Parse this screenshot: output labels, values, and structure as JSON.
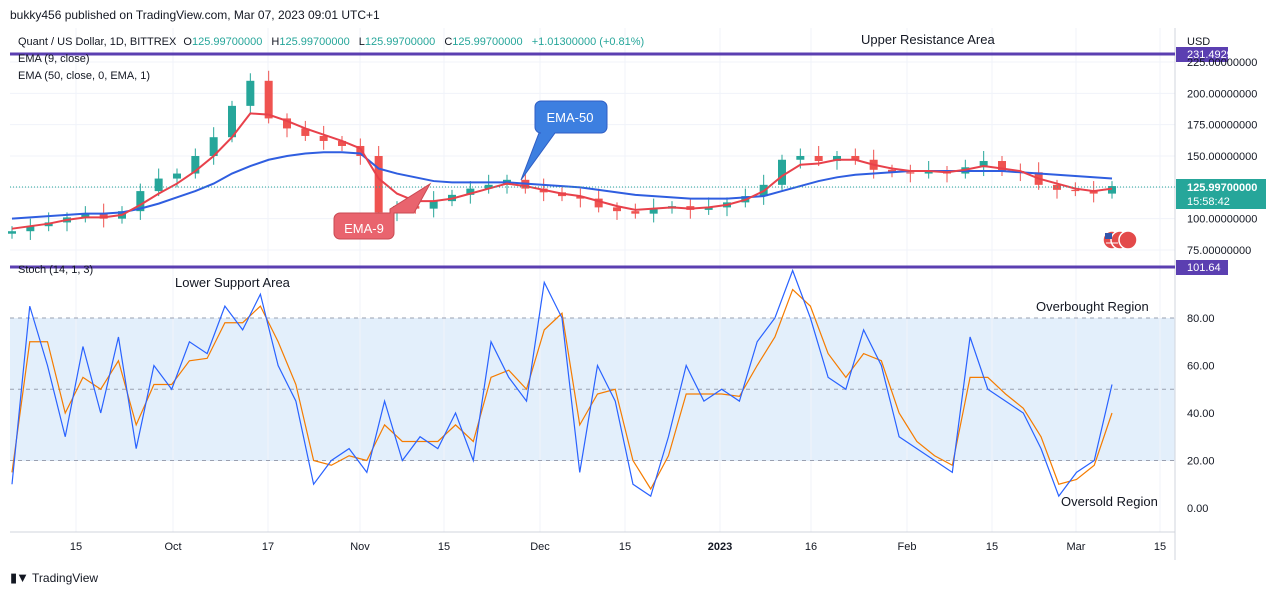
{
  "header": {
    "publisher": "bukky456 published on TradingView.com, Mar 07, 2023 09:01 UTC+1"
  },
  "legend": {
    "symbol": "Quant / US Dollar, 1D, BITTREX",
    "o_label": "O",
    "o_value": "125.99700000",
    "h_label": "H",
    "h_value": "125.99700000",
    "l_label": "L",
    "l_value": "125.99700000",
    "c_label": "C",
    "c_value": "125.99700000",
    "change": "+1.01300000 (+0.81%)",
    "ema9": "EMA (9, close)",
    "ema50": "EMA (50, close, 0, EMA, 1)",
    "stoch": "Stoch (14, 1, 3)"
  },
  "annotations": {
    "upper_resistance": "Upper Resistance Area",
    "lower_support": "Lower Support Area",
    "overbought": "Overbought Region",
    "oversold": "Oversold Region",
    "ema50_callout": "EMA-50",
    "ema9_callout": "EMA-9"
  },
  "price_axis": {
    "currency": "USD",
    "top_line_label": "231.49297645",
    "ticks": [
      "225.00000000",
      "200.00000000",
      "175.00000000",
      "150.00000000",
      "100.00000000",
      "75.00000000"
    ],
    "last_price": "125.99700000",
    "countdown": "15:58:42"
  },
  "stoch_axis": {
    "top_line_label": "101.64",
    "ticks": [
      "80.00",
      "60.00",
      "40.00",
      "20.00",
      "0.00"
    ]
  },
  "time_axis": {
    "ticks": [
      "15",
      "Oct",
      "17",
      "Nov",
      "15",
      "Dec",
      "15",
      "2023",
      "16",
      "Feb",
      "15",
      "Mar",
      "15"
    ]
  },
  "footer": {
    "brand": "TradingView"
  },
  "colors": {
    "up": "#26a69a",
    "down": "#ef5350",
    "ema9": "#e8414b",
    "ema50": "#2f5ee0",
    "resistance_line": "#5b3fb1",
    "stoch_k": "#2962ff",
    "stoch_d": "#f57c00",
    "band_fill": "#e3effb",
    "callout_ema50": "#3d7fe0",
    "callout_ema9": "#e9646e"
  },
  "chart_data": [
    {
      "type": "candlestick",
      "title": "Quant / US Dollar, 1D, BITTREX",
      "ylim": [
        70,
        240
      ],
      "horizontal_lines": [
        {
          "label": "Upper Resistance Area",
          "value": 231.49297645
        }
      ],
      "dates": [
        "Sep 07",
        "Sep 10",
        "Sep 13",
        "Sep 16",
        "Sep 19",
        "Sep 22",
        "Sep 25",
        "Sep 28",
        "Oct 01",
        "Oct 04",
        "Oct 07",
        "Oct 10",
        "Oct 13",
        "Oct 16",
        "Oct 19",
        "Oct 22",
        "Oct 25",
        "Oct 28",
        "Oct 31",
        "Nov 03",
        "Nov 06",
        "Nov 09",
        "Nov 12",
        "Nov 15",
        "Nov 18",
        "Nov 21",
        "Nov 24",
        "Nov 27",
        "Nov 30",
        "Dec 03",
        "Dec 06",
        "Dec 09",
        "Dec 12",
        "Dec 15",
        "Dec 18",
        "Dec 21",
        "Dec 24",
        "Dec 27",
        "Dec 30",
        "Jan 02",
        "Jan 05",
        "Jan 08",
        "Jan 11",
        "Jan 14",
        "Jan 17",
        "Jan 20",
        "Jan 23",
        "Jan 26",
        "Jan 29",
        "Feb 01",
        "Feb 04",
        "Feb 07",
        "Feb 10",
        "Feb 13",
        "Feb 16",
        "Feb 19",
        "Feb 22",
        "Feb 25",
        "Feb 28",
        "Mar 03",
        "Mar 06"
      ],
      "close": [
        90,
        94,
        97,
        101,
        104,
        100,
        106,
        122,
        132,
        136,
        150,
        165,
        190,
        210,
        180,
        172,
        166,
        162,
        158,
        150,
        105,
        110,
        108,
        114,
        119,
        124,
        127,
        131,
        124,
        121,
        118,
        116,
        109,
        106,
        104,
        108,
        110,
        107,
        109,
        113,
        118,
        127,
        147,
        150,
        146,
        150,
        147,
        139,
        137,
        136,
        138,
        136,
        141,
        146,
        138,
        137,
        127,
        123,
        122,
        120,
        126
      ],
      "ema9": [
        92,
        94,
        96,
        99,
        101,
        101,
        103,
        111,
        120,
        128,
        138,
        150,
        165,
        184,
        183,
        178,
        172,
        167,
        162,
        156,
        132,
        120,
        114,
        114,
        116,
        120,
        124,
        128,
        126,
        123,
        120,
        118,
        114,
        110,
        107,
        108,
        109,
        108,
        109,
        111,
        115,
        122,
        134,
        143,
        144,
        147,
        147,
        143,
        140,
        138,
        138,
        137,
        139,
        142,
        140,
        138,
        132,
        128,
        124,
        122,
        124
      ],
      "ema50": [
        100,
        101,
        102,
        103,
        104,
        104,
        105,
        108,
        112,
        117,
        122,
        128,
        136,
        142,
        147,
        150,
        152,
        153,
        153,
        152,
        140,
        136,
        133,
        130,
        129,
        129,
        129,
        129,
        128,
        127,
        126,
        125,
        123,
        121,
        119,
        118,
        117,
        116,
        116,
        116,
        117,
        118,
        122,
        126,
        130,
        133,
        135,
        136,
        137,
        138,
        138,
        138,
        138,
        138,
        138,
        137,
        136,
        135,
        134,
        133,
        132
      ]
    },
    {
      "type": "line",
      "title": "Stoch (14, 1, 3)",
      "ylim": [
        0,
        101.64
      ],
      "reference_lines": [
        80,
        50,
        20
      ],
      "series": [
        {
          "name": "%K",
          "values": [
            10,
            85,
            60,
            30,
            68,
            40,
            72,
            25,
            60,
            50,
            70,
            65,
            85,
            75,
            90,
            60,
            45,
            10,
            20,
            25,
            15,
            45,
            20,
            30,
            25,
            40,
            20,
            70,
            55,
            45,
            95,
            80,
            15,
            60,
            45,
            10,
            5,
            30,
            60,
            45,
            50,
            45,
            70,
            80,
            100,
            80,
            55,
            50,
            75,
            60,
            30,
            25,
            20,
            15,
            72,
            50,
            45,
            40,
            25,
            5,
            15,
            20,
            52
          ],
          "dates": [
            "Sep 07",
            "Sep 08",
            "Sep 10",
            "Sep 12",
            "Sep 14",
            "Sep 16",
            "Sep 18",
            "Sep 20",
            "Sep 22",
            "Sep 25",
            "Sep 28",
            "Oct 01",
            "Oct 04",
            "Oct 07",
            "Oct 13",
            "Oct 16",
            "Oct 19",
            "Oct 25",
            "Oct 28",
            "Oct 31",
            "Nov 03",
            "Nov 06",
            "Nov 09",
            "Nov 12",
            "Nov 15",
            "Nov 18",
            "Nov 21",
            "Nov 24",
            "Nov 27",
            "Nov 30",
            "Dec 03",
            "Dec 06",
            "Dec 09",
            "Dec 12",
            "Dec 15",
            "Dec 18",
            "Dec 21",
            "Dec 24",
            "Dec 27",
            "Dec 30",
            "Jan 02",
            "Jan 05",
            "Jan 08",
            "Jan 11",
            "Jan 14",
            "Jan 17",
            "Jan 20",
            "Jan 23",
            "Jan 26",
            "Jan 29",
            "Feb 01",
            "Feb 04",
            "Feb 07",
            "Feb 10",
            "Feb 13",
            "Feb 16",
            "Feb 19",
            "Feb 22",
            "Feb 25",
            "Feb 28",
            "Mar 02",
            "Mar 04",
            "Mar 06"
          ]
        },
        {
          "name": "%D",
          "values": [
            15,
            70,
            70,
            40,
            55,
            50,
            62,
            35,
            52,
            52,
            62,
            63,
            78,
            78,
            85,
            70,
            52,
            20,
            18,
            22,
            20,
            35,
            28,
            28,
            28,
            35,
            28,
            55,
            58,
            50,
            75,
            82,
            35,
            48,
            50,
            20,
            8,
            22,
            48,
            48,
            48,
            47,
            60,
            72,
            92,
            85,
            65,
            55,
            65,
            62,
            40,
            28,
            22,
            18,
            55,
            55,
            48,
            42,
            30,
            10,
            12,
            18,
            40
          ]
        }
      ]
    }
  ]
}
